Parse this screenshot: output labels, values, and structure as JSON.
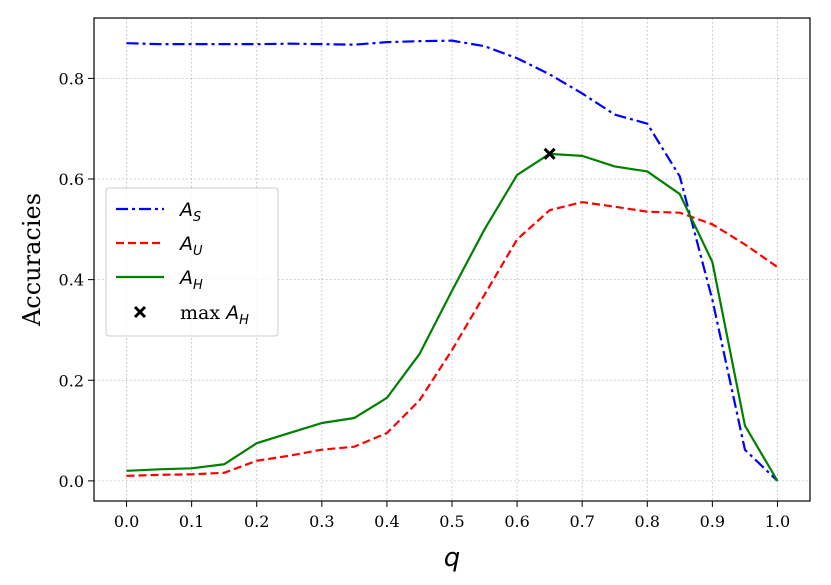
{
  "chart_data": {
    "type": "line",
    "xlabel": "q",
    "ylabel": "Accuracies",
    "xlim": [
      -0.05,
      1.05
    ],
    "ylim": [
      -0.04,
      0.92
    ],
    "xticks": [
      "0.0",
      "0.1",
      "0.2",
      "0.3",
      "0.4",
      "0.5",
      "0.6",
      "0.7",
      "0.8",
      "0.9",
      "1.0"
    ],
    "yticks": [
      "0.0",
      "0.2",
      "0.4",
      "0.6",
      "0.8"
    ],
    "grid": true,
    "legend_position": "center-left",
    "x": [
      0.0,
      0.05,
      0.1,
      0.15,
      0.2,
      0.25,
      0.3,
      0.35,
      0.4,
      0.45,
      0.5,
      0.55,
      0.6,
      0.65,
      0.7,
      0.75,
      0.8,
      0.85,
      0.9,
      0.95,
      1.0
    ],
    "series": [
      {
        "name": "A_S",
        "name_main": "A",
        "name_sub": "S",
        "color": "#0000ff",
        "dash": "12,4,3,4",
        "values": [
          0.87,
          0.868,
          0.868,
          0.868,
          0.868,
          0.869,
          0.868,
          0.867,
          0.872,
          0.874,
          0.875,
          0.864,
          0.84,
          0.808,
          0.77,
          0.728,
          0.71,
          0.605,
          0.36,
          0.062,
          0.0
        ]
      },
      {
        "name": "A_U",
        "name_main": "A",
        "name_sub": "U",
        "color": "#ff0000",
        "dash": "8,4",
        "values": [
          0.01,
          0.012,
          0.013,
          0.016,
          0.04,
          0.05,
          0.062,
          0.068,
          0.095,
          0.16,
          0.26,
          0.37,
          0.48,
          0.538,
          0.554,
          0.545,
          0.535,
          0.533,
          0.51,
          0.47,
          0.425
        ]
      },
      {
        "name": "A_H",
        "name_main": "A",
        "name_sub": "H",
        "color": "#008000",
        "dash": "",
        "values": [
          0.02,
          0.023,
          0.025,
          0.033,
          0.075,
          0.095,
          0.115,
          0.125,
          0.165,
          0.252,
          0.378,
          0.5,
          0.608,
          0.65,
          0.646,
          0.625,
          0.615,
          0.57,
          0.435,
          0.11,
          0.0
        ]
      }
    ],
    "marker": {
      "name": "max A_H",
      "label_prefix": "max",
      "name_main": "A",
      "name_sub": "H",
      "x": 0.65,
      "y": 0.65,
      "symbol": "x",
      "color": "#000000"
    }
  }
}
